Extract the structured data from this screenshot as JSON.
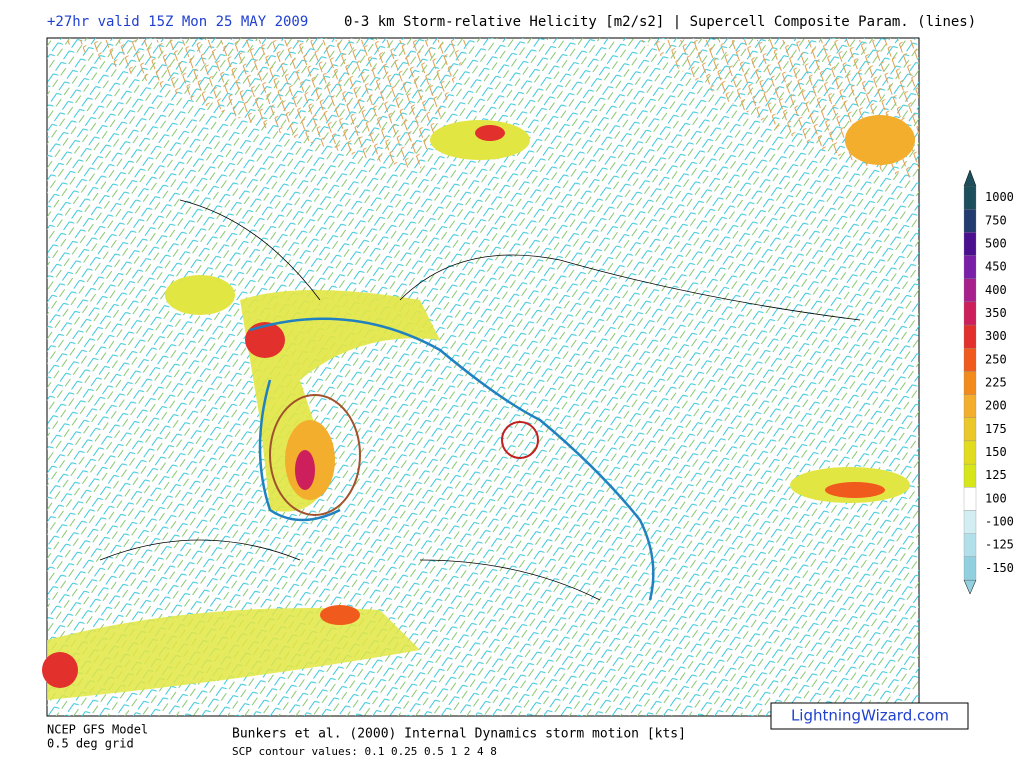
{
  "header": {
    "run": "+27hr valid 15Z Mon 25 MAY 2009",
    "title": "0-3 km Storm-relative Helicity [m2/s2] | Supercell Composite Param. (lines)"
  },
  "colorbar": {
    "levels": [
      {
        "value": 1000,
        "color": "#1d4e5c"
      },
      {
        "value": 750,
        "color": "#233b6e"
      },
      {
        "value": 500,
        "color": "#4a1090"
      },
      {
        "value": 450,
        "color": "#7a20a8"
      },
      {
        "value": 400,
        "color": "#a8208c"
      },
      {
        "value": 350,
        "color": "#cc1f5c"
      },
      {
        "value": 300,
        "color": "#e2302c"
      },
      {
        "value": 250,
        "color": "#f05a1c"
      },
      {
        "value": 225,
        "color": "#f38a1c"
      },
      {
        "value": 200,
        "color": "#f2ae2c"
      },
      {
        "value": 175,
        "color": "#eac82a"
      },
      {
        "value": 150,
        "color": "#e2dc1e"
      },
      {
        "value": 125,
        "color": "#d6e61a"
      },
      {
        "value": 100,
        "color": "#ffffff"
      },
      {
        "value": -100,
        "color": "#d2eef2"
      },
      {
        "value": -125,
        "color": "#b2e0ea"
      },
      {
        "value": -150,
        "color": "#92d0e0"
      }
    ]
  },
  "footer": {
    "model": "NCEP GFS Model",
    "grid": "0.5 deg grid",
    "motion": "Bunkers et al. (2000) Internal Dynamics storm motion [kts]",
    "contours": "SCP contour values: 0.1 0.25 0.5 1 2 4 8",
    "credit": "LightningWizard.com"
  }
}
